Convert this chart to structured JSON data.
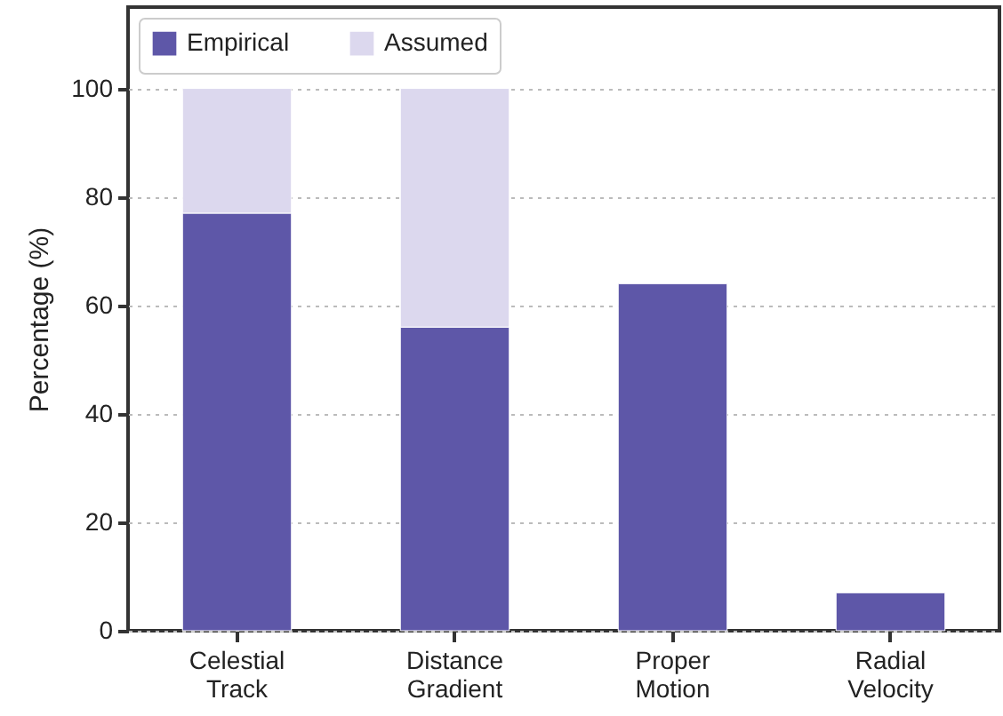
{
  "chart_data": {
    "type": "bar",
    "ylabel": "Percentage (%)",
    "categories": [
      "Celestial Track",
      "Distance Gradient",
      "Proper Motion",
      "Radial Velocity"
    ],
    "series": [
      {
        "name": "Empirical",
        "color": "#5e57a8",
        "values": [
          77,
          56,
          64,
          7
        ]
      },
      {
        "name": "Assumed",
        "color": "#dcd8ee",
        "values": [
          23,
          44,
          null,
          null
        ]
      }
    ],
    "stacked": true,
    "ylim": [
      0,
      115
    ],
    "yticks": [
      0,
      20,
      40,
      60,
      80,
      100
    ],
    "grid": "y",
    "legend": "top left"
  }
}
